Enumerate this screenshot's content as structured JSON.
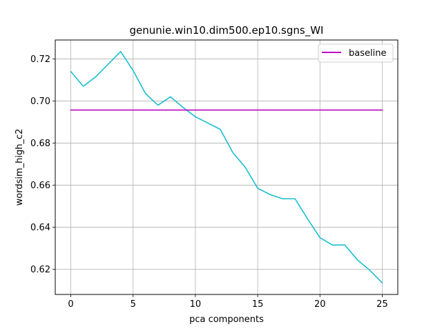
{
  "chart_data": {
    "type": "line",
    "title": "genunie.win10.dim500.ep10.sgns_WI",
    "xlabel": "pca components",
    "ylabel": "wordsim_high_c2",
    "xlim": [
      -1.25,
      26.25
    ],
    "ylim": [
      0.608,
      0.729
    ],
    "xticks": [
      0,
      5,
      10,
      15,
      20,
      25
    ],
    "yticks": [
      0.62,
      0.64,
      0.66,
      0.68,
      0.7,
      0.72
    ],
    "xtick_labels": [
      "0",
      "5",
      "10",
      "15",
      "20",
      "25"
    ],
    "ytick_labels": [
      "0.62",
      "0.64",
      "0.66",
      "0.68",
      "0.70",
      "0.72"
    ],
    "grid": true,
    "legend_position": "top-right",
    "series": [
      {
        "color": "#17becf",
        "x": [
          0,
          1,
          2,
          3,
          4,
          5,
          6,
          7,
          8,
          9,
          10,
          11,
          12,
          13,
          14,
          15,
          16,
          17,
          18,
          19,
          20,
          21,
          22,
          23,
          24,
          25
        ],
        "values": [
          0.714,
          0.707,
          0.7115,
          0.7175,
          0.7235,
          0.7145,
          0.7035,
          0.698,
          0.702,
          0.697,
          0.6925,
          0.6895,
          0.6865,
          0.6755,
          0.6685,
          0.6585,
          0.6555,
          0.6535,
          0.6535,
          0.644,
          0.635,
          0.6315,
          0.6315,
          0.6245,
          0.6195,
          0.6135
        ]
      },
      {
        "name": "baseline",
        "color": "#bf00bf",
        "x": [
          0,
          25
        ],
        "values": [
          0.6957,
          0.6957
        ]
      }
    ]
  }
}
